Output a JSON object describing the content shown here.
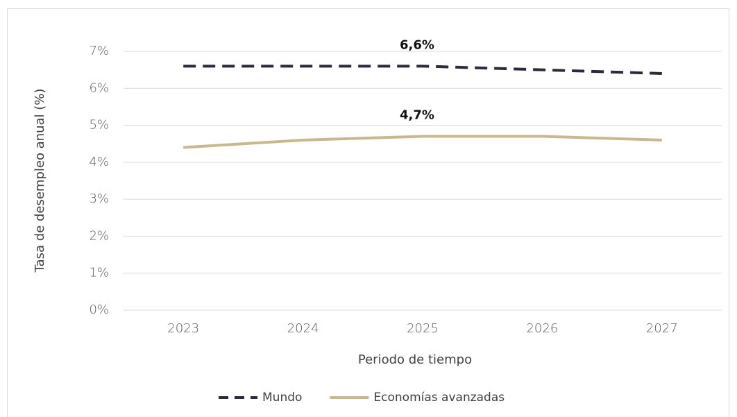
{
  "chart_data": {
    "type": "line",
    "categories": [
      "2023",
      "2024",
      "2025",
      "2026",
      "2027"
    ],
    "series": [
      {
        "name": "Mundo",
        "color": "#2b2a3f",
        "dashed": true,
        "values": [
          6.6,
          6.6,
          6.6,
          6.5,
          6.4
        ],
        "value_labels": [
          null,
          null,
          "6,6%",
          null,
          null
        ]
      },
      {
        "name": "Economías avanzadas",
        "color": "#c9b98a",
        "dashed": false,
        "values": [
          4.4,
          4.6,
          4.7,
          4.7,
          4.6
        ],
        "value_labels": [
          null,
          null,
          "4,7%",
          null,
          null
        ]
      }
    ],
    "ylabel": "Tasa de desempleo anual (%)",
    "xlabel": "Periodo de tiempo",
    "ylim": [
      0,
      7
    ],
    "yticks": [
      {
        "value": 0,
        "label": "0%"
      },
      {
        "value": 1,
        "label": "1%"
      },
      {
        "value": 2,
        "label": "2%"
      },
      {
        "value": 3,
        "label": "3%"
      },
      {
        "value": 4,
        "label": "4%"
      },
      {
        "value": 5,
        "label": "5%"
      },
      {
        "value": 6,
        "label": "6%"
      },
      {
        "value": 7,
        "label": "7%"
      }
    ],
    "grid": true,
    "legend": "bottom"
  }
}
